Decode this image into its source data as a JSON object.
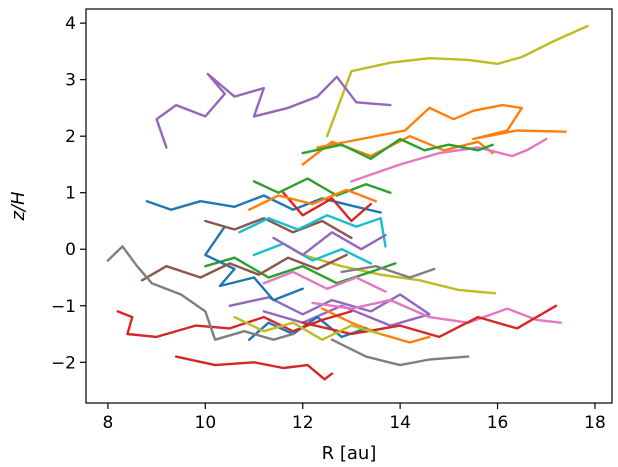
{
  "chart_data": {
    "type": "line",
    "xlabel": "R [au]",
    "ylabel": "z/H",
    "xlim": [
      7.55,
      18.35
    ],
    "ylim": [
      -2.72,
      4.25
    ],
    "xticks": [
      8,
      10,
      12,
      14,
      16,
      18
    ],
    "yticks": [
      -2,
      -1,
      0,
      1,
      2,
      3,
      4
    ],
    "xtick_labels": [
      "8",
      "10",
      "12",
      "14",
      "16",
      "18"
    ],
    "ytick_labels": [
      "−2",
      "−1",
      "0",
      "1",
      "2",
      "3",
      "4"
    ],
    "grid": false,
    "legend": "none",
    "colors": [
      "#1f77b4",
      "#ff7f0e",
      "#2ca02c",
      "#d62728",
      "#9467bd",
      "#8c564b",
      "#e377c2",
      "#7f7f7f",
      "#bcbd22",
      "#17becf"
    ],
    "series": [
      {
        "color": "#bcbd22",
        "x": [
          12.5,
          13.0,
          13.8,
          14.6,
          15.4,
          16.0,
          16.5,
          17.2,
          17.85
        ],
        "y": [
          2.0,
          3.15,
          3.3,
          3.38,
          3.35,
          3.28,
          3.4,
          3.7,
          3.95
        ]
      },
      {
        "color": "#bcbd22",
        "x": [
          12.0,
          12.8,
          13.6,
          14.4,
          15.2,
          15.95
        ],
        "y": [
          -0.1,
          -0.3,
          -0.45,
          -0.55,
          -0.72,
          -0.78
        ]
      },
      {
        "color": "#9467bd",
        "x": [
          9.2,
          9.0,
          9.4,
          10.0,
          10.4,
          10.05,
          10.6,
          11.2,
          11.0,
          11.7,
          12.3,
          12.7,
          13.1,
          13.8
        ],
        "y": [
          1.8,
          2.3,
          2.55,
          2.35,
          2.75,
          3.1,
          2.7,
          2.85,
          2.35,
          2.5,
          2.7,
          3.05,
          2.6,
          2.55
        ]
      },
      {
        "color": "#9467bd",
        "x": [
          10.5,
          11.3,
          12.0,
          12.6,
          13.4,
          14.0,
          14.6,
          13.8,
          12.8,
          12.0,
          11.2
        ],
        "y": [
          -1.0,
          -0.85,
          -1.15,
          -0.9,
          -1.1,
          -0.8,
          -1.15,
          -1.35,
          -1.0,
          -1.3,
          -1.1
        ]
      },
      {
        "color": "#ff7f0e",
        "x": [
          12.3,
          13.2,
          14.1,
          14.6,
          15.1,
          15.5,
          16.1,
          16.5,
          16.2,
          15.5,
          16.4,
          17.4
        ],
        "y": [
          1.8,
          1.95,
          2.1,
          2.5,
          2.3,
          2.45,
          2.55,
          2.5,
          2.1,
          1.95,
          2.1,
          2.08
        ]
      },
      {
        "color": "#ff7f0e",
        "x": [
          12.0,
          12.6,
          13.4,
          14.2,
          14.9,
          15.6,
          15.9
        ],
        "y": [
          1.5,
          1.9,
          1.65,
          2.0,
          1.75,
          1.9,
          1.7
        ]
      },
      {
        "color": "#ff7f0e",
        "x": [
          12.4,
          13.0,
          13.6,
          14.2,
          14.6
        ],
        "y": [
          -1.05,
          -1.3,
          -1.5,
          -1.65,
          -1.55
        ]
      },
      {
        "color": "#e377c2",
        "x": [
          13.0,
          14.0,
          14.8,
          15.6,
          16.3,
          16.6,
          17.0
        ],
        "y": [
          1.2,
          1.5,
          1.7,
          1.8,
          1.65,
          1.75,
          1.95
        ]
      },
      {
        "color": "#e377c2",
        "x": [
          12.2,
          13.0,
          13.8,
          14.6,
          15.4,
          16.2,
          16.8,
          17.3
        ],
        "y": [
          -0.95,
          -1.05,
          -0.9,
          -1.2,
          -1.3,
          -1.05,
          -1.25,
          -1.3
        ]
      },
      {
        "color": "#2ca02c",
        "x": [
          12.0,
          12.8,
          13.4,
          14.0,
          14.5,
          15.0,
          15.6,
          15.9
        ],
        "y": [
          1.7,
          1.85,
          1.6,
          1.95,
          1.75,
          1.85,
          1.75,
          1.85
        ]
      },
      {
        "color": "#2ca02c",
        "x": [
          10.0,
          10.6,
          11.3,
          12.0,
          12.7,
          13.4,
          13.9
        ],
        "y": [
          -0.3,
          -0.15,
          -0.5,
          -0.3,
          -0.6,
          -0.4,
          -0.25
        ]
      },
      {
        "color": "#1f77b4",
        "x": [
          8.8,
          9.3,
          9.9,
          10.6,
          11.2,
          11.8,
          12.4,
          13.1,
          13.6
        ],
        "y": [
          0.85,
          0.7,
          0.85,
          0.75,
          0.95,
          0.7,
          0.9,
          0.75,
          0.65
        ]
      },
      {
        "color": "#1f77b4",
        "x": [
          10.4,
          10.0,
          10.6,
          10.3,
          11.0,
          11.4,
          12.0
        ],
        "y": [
          0.4,
          -0.1,
          -0.35,
          -0.65,
          -0.5,
          -0.9,
          -0.7
        ]
      },
      {
        "color": "#1f77b4",
        "x": [
          10.9,
          11.3,
          11.8,
          12.3,
          12.8,
          13.3
        ],
        "y": [
          -1.6,
          -1.3,
          -1.5,
          -1.2,
          -1.55,
          -1.4
        ]
      },
      {
        "color": "#d62728",
        "x": [
          8.2,
          8.5,
          8.4,
          9.0,
          9.8,
          10.5,
          11.2,
          11.8,
          12.4,
          13.0
        ],
        "y": [
          -1.1,
          -1.2,
          -1.5,
          -1.55,
          -1.35,
          -1.4,
          -1.2,
          -1.45,
          -1.25,
          -1.1
        ]
      },
      {
        "color": "#d62728",
        "x": [
          9.4,
          10.2,
          11.0,
          11.6,
          12.1,
          12.45,
          12.6
        ],
        "y": [
          -1.9,
          -2.05,
          -2.0,
          -2.1,
          -2.05,
          -2.3,
          -2.2
        ]
      },
      {
        "color": "#d62728",
        "x": [
          12.0,
          13.0,
          14.0,
          14.8,
          15.6,
          16.4,
          17.2
        ],
        "y": [
          -1.3,
          -1.5,
          -1.35,
          -1.55,
          -1.2,
          -1.4,
          -1.0
        ]
      },
      {
        "color": "#8c564b",
        "x": [
          8.7,
          9.2,
          9.9,
          10.5,
          11.1,
          11.7,
          12.3,
          12.9
        ],
        "y": [
          -0.55,
          -0.3,
          -0.5,
          -0.25,
          -0.45,
          -0.15,
          -0.35,
          -0.1
        ]
      },
      {
        "color": "#8c564b",
        "x": [
          10.0,
          10.6,
          11.2,
          11.8,
          12.4,
          13.0
        ],
        "y": [
          0.5,
          0.35,
          0.55,
          0.3,
          0.5,
          0.2
        ]
      },
      {
        "color": "#7f7f7f",
        "x": [
          8.0,
          8.3,
          8.6,
          8.9,
          9.5,
          10.0,
          10.2,
          10.8,
          11.4,
          11.8
        ],
        "y": [
          -0.2,
          0.05,
          -0.3,
          -0.6,
          -0.8,
          -1.1,
          -1.6,
          -1.45,
          -1.6,
          -1.5
        ]
      },
      {
        "color": "#7f7f7f",
        "x": [
          12.6,
          13.3,
          14.0,
          14.6,
          15.4
        ],
        "y": [
          -1.6,
          -1.9,
          -2.05,
          -1.95,
          -1.9
        ]
      },
      {
        "color": "#7f7f7f",
        "x": [
          12.8,
          13.5,
          14.2,
          14.7
        ],
        "y": [
          -0.4,
          -0.3,
          -0.5,
          -0.35
        ]
      },
      {
        "color": "#17becf",
        "x": [
          10.7,
          11.3,
          11.9,
          12.5,
          13.1,
          13.6,
          13.7
        ],
        "y": [
          0.3,
          0.55,
          0.35,
          0.6,
          0.4,
          0.55,
          0.05
        ]
      },
      {
        "color": "#17becf",
        "x": [
          11.0,
          11.6,
          12.2,
          12.8,
          13.4
        ],
        "y": [
          -0.1,
          0.1,
          -0.2,
          0.0,
          -0.25
        ]
      },
      {
        "color": "#bcbd22",
        "x": [
          10.6,
          11.2,
          11.8,
          12.4,
          13.0,
          13.6
        ],
        "y": [
          -1.2,
          -1.45,
          -1.3,
          -1.6,
          -1.35,
          -1.5
        ]
      },
      {
        "color": "#2ca02c",
        "x": [
          11.0,
          11.5,
          12.1,
          12.7,
          13.3,
          13.8
        ],
        "y": [
          1.2,
          1.0,
          1.25,
          0.95,
          1.15,
          1.0
        ]
      },
      {
        "color": "#d62728",
        "x": [
          11.6,
          12.0,
          12.6,
          13.0,
          13.4
        ],
        "y": [
          1.0,
          0.6,
          0.9,
          0.5,
          0.8
        ]
      },
      {
        "color": "#9467bd",
        "x": [
          11.4,
          12.0,
          12.6,
          13.2,
          13.7
        ],
        "y": [
          0.2,
          -0.1,
          0.3,
          0.0,
          0.25
        ]
      },
      {
        "color": "#e377c2",
        "x": [
          11.2,
          11.8,
          12.5,
          13.1,
          13.7
        ],
        "y": [
          -0.6,
          -0.4,
          -0.7,
          -0.5,
          -0.75
        ]
      },
      {
        "color": "#ff7f0e",
        "x": [
          10.9,
          11.5,
          12.2,
          12.9,
          13.5
        ],
        "y": [
          0.7,
          0.95,
          0.8,
          1.05,
          0.85
        ]
      }
    ]
  }
}
